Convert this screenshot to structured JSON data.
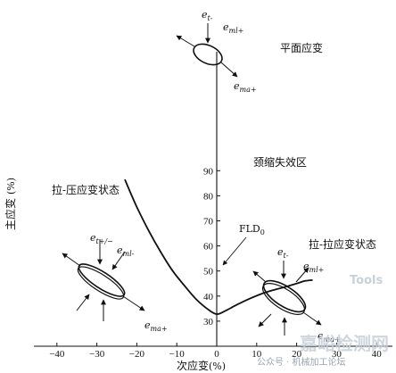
{
  "chart_data": {
    "type": "line",
    "title": "",
    "xlabel": "次应变",
    "xunit": "(%)",
    "ylabel": "主应变",
    "yunit": "(%)",
    "xlim": [
      -45,
      45
    ],
    "ylim": [
      20,
      97
    ],
    "xticks": [
      -40,
      -30,
      -20,
      -10,
      0,
      10,
      20,
      30,
      40
    ],
    "yticks": [
      30,
      40,
      50,
      60,
      70,
      80,
      90
    ],
    "grid": false,
    "legend": "none",
    "series": [
      {
        "x": [
          -23,
          -20,
          -17,
          -14,
          -11,
          -8,
          -5,
          -2,
          0,
          2,
          5,
          8,
          11,
          14,
          17,
          20,
          22,
          24
        ],
        "y": [
          86.5,
          75.5,
          66,
          57.5,
          50,
          44,
          38.5,
          34.5,
          32.8,
          34,
          36.5,
          38.8,
          40.8,
          42.3,
          43.6,
          45,
          46,
          46.4
        ]
      }
    ],
    "annotations": {
      "fld": "FLD",
      "fld_sub": "0",
      "region_plane": "平面应变",
      "region_necking": "颈缩失效区",
      "region_tension_compression": "拉-压应变状态",
      "region_tension_tension": "拉-拉应变状态",
      "et_minus": "e",
      "et_minus_sub": "t-",
      "eml_plus": "e",
      "eml_plus_sub": "ml+",
      "ema_plus": "e",
      "ema_plus_sub": "ma+",
      "et_pm": "e",
      "et_pm_sub": "t+/−",
      "eml_minus": "e",
      "eml_minus_sub": "ml-",
      "ema_plus_left": "e",
      "ema_plus_left_sub": "ma+"
    }
  },
  "watermark": {
    "source": "公众号 · 机械加工论坛",
    "site_cn": "嘉峪检测网",
    "site_en": "Tools"
  },
  "colors": {
    "ink": "#111111",
    "watermark": "#c8d0d8"
  }
}
